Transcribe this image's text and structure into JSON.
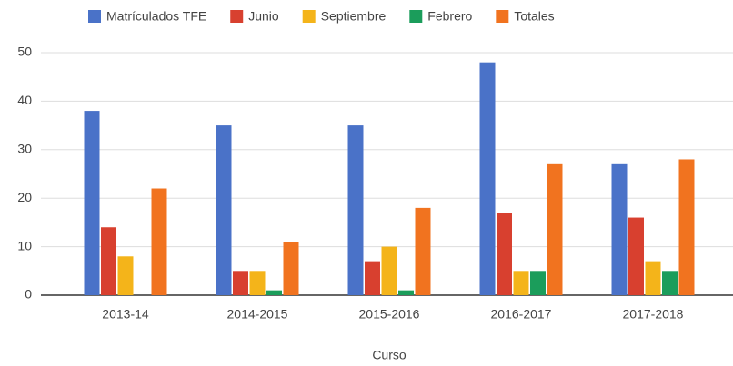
{
  "chart_data": {
    "type": "bar",
    "x_label": "Curso",
    "categories": [
      "2013-14",
      "2014-2015",
      "2015-2016",
      "2016-2017",
      "2017-2018"
    ],
    "series": [
      {
        "name": "Matrículados TFE",
        "color": "#4a72c8",
        "values": [
          38,
          35,
          35,
          48,
          27
        ]
      },
      {
        "name": "Junio",
        "color": "#d8402f",
        "values": [
          14,
          5,
          7,
          17,
          16
        ]
      },
      {
        "name": "Septiembre",
        "color": "#f4b41a",
        "values": [
          8,
          5,
          10,
          5,
          7
        ]
      },
      {
        "name": "Febrero",
        "color": "#1b9d5b",
        "values": [
          0,
          1,
          1,
          5,
          5
        ]
      },
      {
        "name": "Totales",
        "color": "#f1731f",
        "values": [
          22,
          11,
          18,
          27,
          28
        ]
      }
    ],
    "ylim": [
      0,
      50
    ],
    "yticks": [
      0,
      10,
      20,
      30,
      40,
      50
    ],
    "grid": true,
    "legend": "top"
  }
}
